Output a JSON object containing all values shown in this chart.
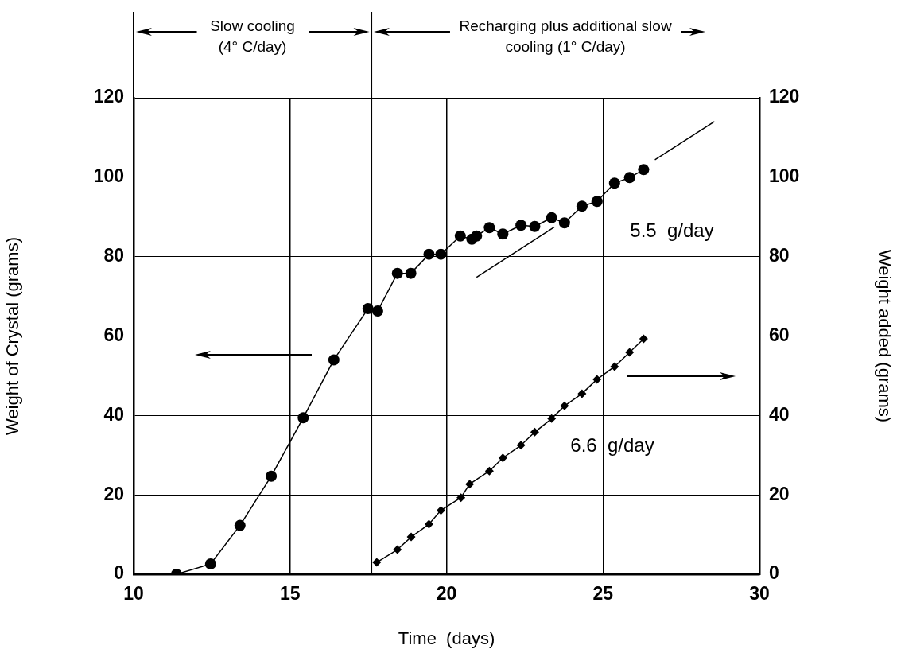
{
  "chart_data": {
    "type": "line",
    "xlabel": "Time  (days)",
    "ylabel": "Weight of Crystal (grams)",
    "y2label": "Weight added (grams)",
    "xlim": [
      10,
      30
    ],
    "xticks": [
      10,
      15,
      20,
      25,
      30
    ],
    "ylim": [
      0,
      120
    ],
    "yticks": [
      0,
      20,
      40,
      60,
      80,
      100,
      120
    ],
    "y2lim": [
      0,
      120
    ],
    "y2ticks": [
      0,
      20,
      40,
      60,
      80,
      100,
      120
    ],
    "grid": true,
    "legend": false,
    "series": [
      {
        "color": "#000000",
        "marker": "circle",
        "x": [
          11.37,
          12.46,
          13.4,
          14.4,
          15.42,
          16.4,
          17.49,
          17.8,
          18.43,
          18.86,
          19.44,
          19.82,
          20.44,
          20.81,
          20.96,
          21.37,
          21.8,
          22.38,
          22.82,
          23.36,
          23.77,
          24.33,
          24.81,
          25.37,
          25.85,
          26.3
        ],
        "values": [
          0,
          2.6,
          12.3,
          24.7,
          39.4,
          54,
          66.9,
          66.3,
          75.8,
          75.8,
          80.6,
          80.6,
          85.2,
          84.4,
          85.2,
          87.3,
          85.7,
          87.9,
          87.6,
          89.8,
          88.5,
          92.7,
          93.9,
          98.5,
          99.9,
          101.9
        ]
      },
      {
        "color": "#000000",
        "marker": "diamond",
        "axis": "y2",
        "x": [
          17.77,
          18.43,
          18.87,
          19.44,
          19.82,
          20.46,
          20.74,
          21.37,
          21.8,
          22.38,
          22.82,
          23.36,
          23.77,
          24.33,
          24.81,
          25.37,
          25.85,
          26.3
        ],
        "values": [
          3,
          6.2,
          9.4,
          12.6,
          16.1,
          19.3,
          22.7,
          26,
          29.3,
          32.5,
          35.8,
          39.2,
          42.4,
          45.5,
          49.1,
          52.3,
          55.9,
          59.3
        ]
      },
      {
        "color": "#000000",
        "marker": "none",
        "x": [
          20.96,
          23.44
        ],
        "values": [
          74.8,
          87.4
        ]
      },
      {
        "color": "#000000",
        "marker": "none",
        "x": [
          26.66,
          28.56
        ],
        "values": [
          104.4,
          114
        ]
      }
    ],
    "ref_lines": [
      {
        "axis": "x",
        "value": 17.6
      }
    ],
    "annotations": [
      "Slow cooling (4° C/day)",
      "Recharging plus additional slow cooling (1° C/day)",
      "5.5  g/day",
      "6.6  g/day"
    ]
  }
}
